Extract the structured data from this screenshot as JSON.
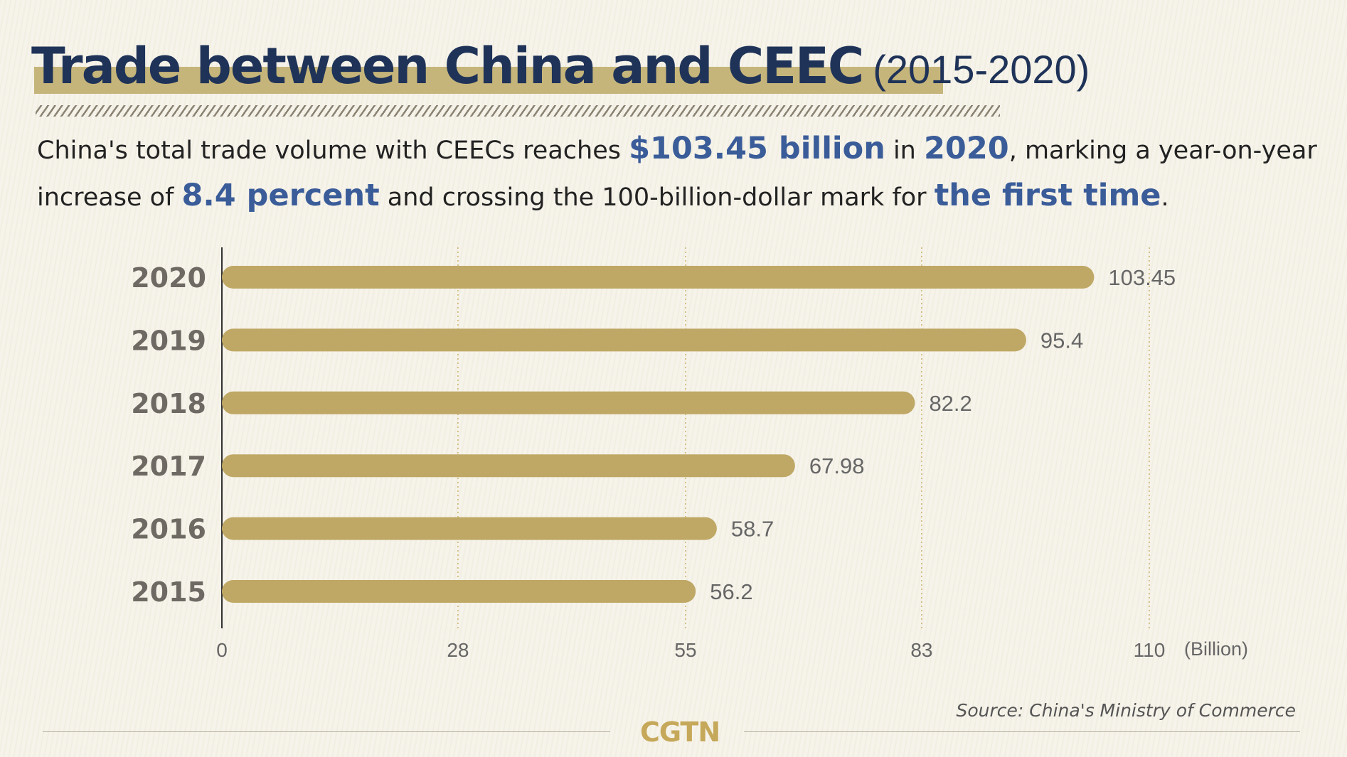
{
  "header": {
    "title_main": "Trade between China and CEEC",
    "title_years": "(2015-2020)"
  },
  "summary": {
    "part1": "China's total trade volume with CEECs reaches ",
    "highlight1": "$103.45 billion",
    "part2": " in ",
    "highlight2": "2020",
    "part3": ", marking a year-on-year increase of ",
    "highlight3": "8.4 percent",
    "part4": " and crossing the 100-billion-dollar mark for ",
    "highlight4": "the first time",
    "part5": "."
  },
  "chart_data": {
    "type": "bar",
    "orientation": "horizontal",
    "categories": [
      "2020",
      "2019",
      "2018",
      "2017",
      "2016",
      "2015"
    ],
    "values": [
      103.45,
      95.4,
      82.2,
      67.98,
      58.7,
      56.2
    ],
    "value_labels": [
      "103.45",
      "95.4",
      "82.2",
      "67.98",
      "58.7",
      "56.2"
    ],
    "xticks": [
      0,
      28,
      55,
      83,
      110
    ],
    "xlim": [
      0,
      110
    ],
    "unit_label": "(Billion)",
    "grid": "vertical-dotted",
    "colors": {
      "bar": "#bfa865",
      "grid": "#c9b26b",
      "axis": "#333333",
      "category_label": "#6e6a63",
      "value_label": "#666666"
    }
  },
  "footer": {
    "source": "Source: China's Ministry of Commerce",
    "logo": "CGTN"
  },
  "colors": {
    "title": "#1f3358",
    "title_highlight": "#c6b57a",
    "text_highlight": "#3a5c99",
    "logo": "#c6a85a"
  }
}
